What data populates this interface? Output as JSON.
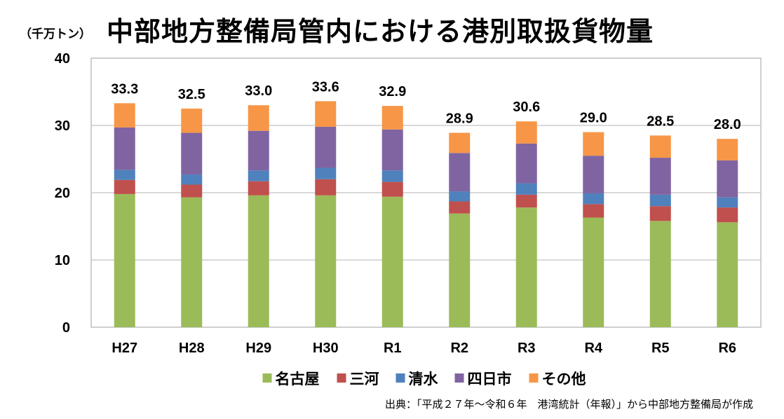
{
  "header": {
    "unit": "（千万トン）",
    "title": "中部地方整備局管内における港別取扱貨物量"
  },
  "source": "出典：「平成２７年～令和６年　港湾統計（年報）」から中部地方整備局が作成",
  "chart_data": {
    "type": "bar",
    "stacked": true,
    "title": "中部地方整備局管内における港別取扱貨物量",
    "ylabel": "（千万トン）",
    "xlabel": "",
    "ylim": [
      0,
      40
    ],
    "yticks": [
      0,
      10,
      20,
      30,
      40
    ],
    "grid": true,
    "legend_position": "bottom",
    "categories": [
      "H27",
      "H28",
      "H29",
      "H30",
      "R1",
      "R2",
      "R3",
      "R4",
      "R5",
      "R6"
    ],
    "totals": [
      "33.3",
      "32.5",
      "33.0",
      "33.6",
      "32.9",
      "28.9",
      "30.6",
      "29.0",
      "28.5",
      "28.0"
    ],
    "series": [
      {
        "name": "名古屋",
        "color": "#9BBB59",
        "values": [
          19.8,
          19.3,
          19.6,
          19.6,
          19.4,
          16.9,
          17.8,
          16.3,
          15.8,
          15.6
        ]
      },
      {
        "name": "三河",
        "color": "#C0504D",
        "values": [
          2.1,
          1.9,
          2.1,
          2.4,
          2.2,
          1.8,
          1.9,
          2.0,
          2.2,
          2.2
        ]
      },
      {
        "name": "清水",
        "color": "#4F81BD",
        "values": [
          1.5,
          1.5,
          1.6,
          1.7,
          1.7,
          1.5,
          1.7,
          1.6,
          1.7,
          1.5
        ]
      },
      {
        "name": "四日市",
        "color": "#8064A2",
        "values": [
          6.3,
          6.2,
          5.9,
          6.1,
          6.1,
          5.7,
          5.9,
          5.6,
          5.5,
          5.5
        ]
      },
      {
        "name": "その他",
        "color": "#F79646",
        "values": [
          3.6,
          3.6,
          3.8,
          3.8,
          3.5,
          3.0,
          3.3,
          3.5,
          3.3,
          3.2
        ]
      }
    ]
  }
}
